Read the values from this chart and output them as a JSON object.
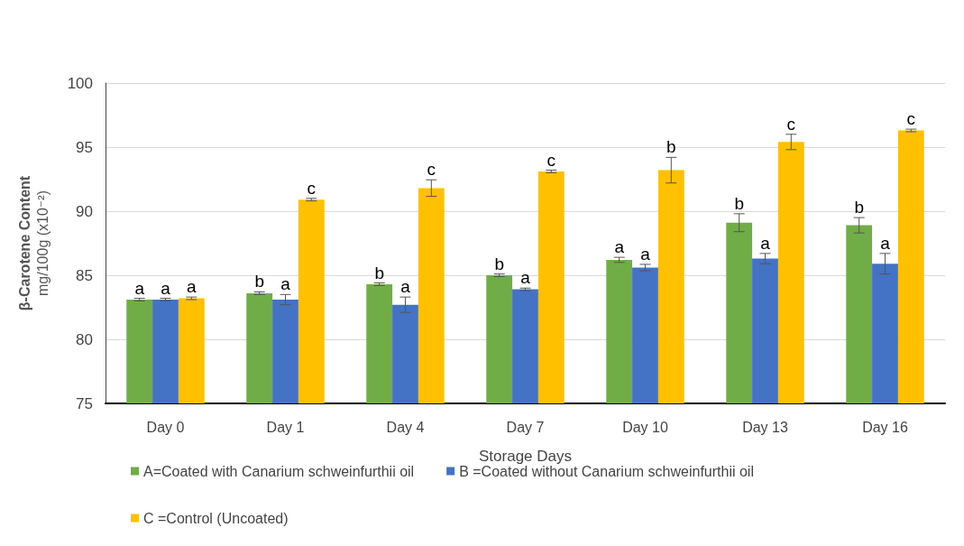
{
  "chart_data": {
    "type": "bar",
    "xlabel": "Storage Days",
    "ylabel": "β-Carotene Content\nmg/100g (x10⁻²)",
    "categories": [
      "Day 0",
      "Day 1",
      "Day 4",
      "Day 7",
      "Day 10",
      "Day 13",
      "Day 16"
    ],
    "series": [
      {
        "name": "A=Coated with Canarium schweinfurthii oil",
        "color": "#70ad47",
        "values": [
          83.1,
          83.6,
          84.3,
          85.0,
          86.2,
          89.1,
          88.9
        ],
        "errors": [
          0.1,
          0.1,
          0.1,
          0.1,
          0.2,
          0.7,
          0.6
        ],
        "value_labels": [
          "a",
          "b",
          "b",
          "b",
          "a",
          "b",
          "b"
        ]
      },
      {
        "name": "B =Coated without Canarium schweinfurthii oil",
        "color": "#4472c4",
        "values": [
          83.1,
          83.1,
          82.7,
          83.9,
          85.6,
          86.3,
          85.9
        ],
        "errors": [
          0.1,
          0.4,
          0.6,
          0.1,
          0.25,
          0.4,
          0.8
        ],
        "value_labels": [
          "a",
          "a",
          "a",
          "a",
          "a",
          "a",
          "a"
        ]
      },
      {
        "name": "C =Control (Uncoated)",
        "color": "#ffc000",
        "values": [
          83.2,
          90.9,
          91.8,
          93.1,
          93.2,
          95.4,
          96.3
        ],
        "errors": [
          0.1,
          0.1,
          0.65,
          0.1,
          1.0,
          0.6,
          0.1
        ],
        "value_labels": [
          "a",
          "c",
          "c",
          "c",
          "b",
          "c",
          "c"
        ]
      }
    ],
    "ylim": [
      75,
      100
    ],
    "yticks": [
      75,
      80,
      85,
      90,
      95,
      100
    ],
    "grid": "y",
    "legend": "bottom"
  }
}
